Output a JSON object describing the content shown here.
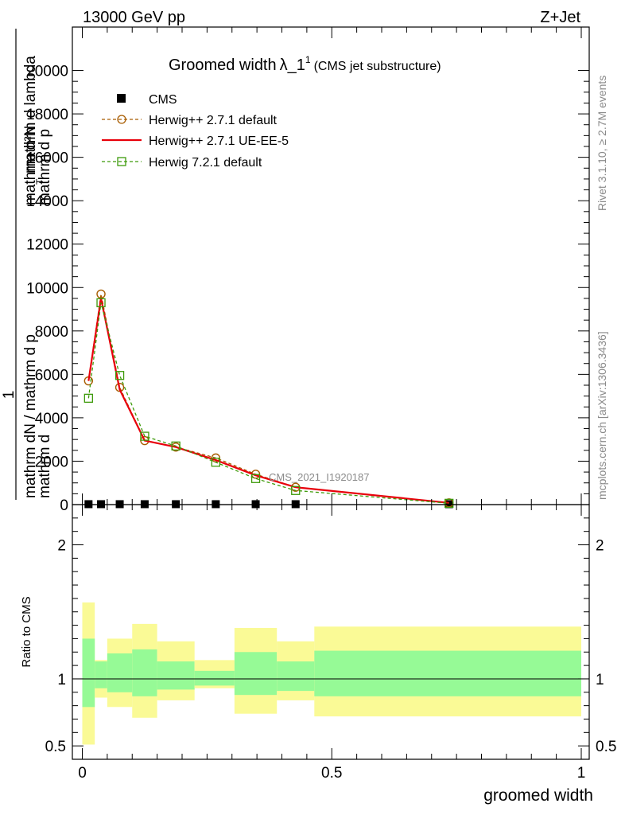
{
  "header": {
    "left": "13000 GeV pp",
    "right": "Z+Jet"
  },
  "side_labels": {
    "top_right": "Rivet 3.1.10, ≥ 2.7M events",
    "bottom_right": "mcplots.cern.ch [arXiv:1306.3436]"
  },
  "chart_data": [
    {
      "type": "line",
      "panel": "main",
      "title": "Groomed width",
      "title_symbol": "λ_1",
      "title_superscript": "1",
      "title_note": "(CMS jet substructure)",
      "analysis_label": "CMS_2021_I1920187",
      "ylabel": {
        "numerator_1": "mathrm d²N",
        "numerator_2": "mathrm d p",
        "subscript": "T",
        "numerator_3": "mathrm d lambda",
        "denominator": "mathrm dN / mathrm d p",
        "denominator_2": "mathrm d",
        "prefix": "1"
      },
      "xlim": [
        0,
        1
      ],
      "ylim": [
        0,
        22000
      ],
      "y_ticks": [
        0,
        2000,
        4000,
        6000,
        8000,
        10000,
        12000,
        14000,
        16000,
        18000,
        20000
      ],
      "y_tick_labels": [
        "0",
        "2000",
        "4000",
        "6000",
        "8000",
        "10000",
        "12000",
        "14000",
        "16000",
        "18000",
        "20000"
      ],
      "legend_position": "top-left",
      "series": [
        {
          "name": "CMS",
          "style": "markers",
          "color": "#000000",
          "x": [
            0.0125,
            0.0375,
            0.075,
            0.125,
            0.1875,
            0.2675,
            0.3475,
            0.4275,
            0.735
          ],
          "y": [
            20,
            20,
            20,
            20,
            20,
            20,
            20,
            20,
            20
          ]
        },
        {
          "name": "Herwig++ 2.7.1 default",
          "style": "dashed-circle",
          "color": "#a85c00",
          "x": [
            0.0125,
            0.0375,
            0.075,
            0.125,
            0.1875,
            0.2675,
            0.3475,
            0.4275,
            0.735
          ],
          "y": [
            5700,
            9700,
            5400,
            2950,
            2650,
            2150,
            1400,
            800,
            80
          ]
        },
        {
          "name": "Herwig++ 2.7.1 UE-EE-5",
          "style": "solid",
          "color": "#e8000b",
          "x": [
            0.0125,
            0.0375,
            0.075,
            0.125,
            0.1875,
            0.2675,
            0.3475,
            0.4275,
            0.735
          ],
          "y": [
            5700,
            9500,
            5300,
            2950,
            2650,
            2050,
            1350,
            800,
            80
          ]
        },
        {
          "name": "Herwig 7.2.1 default",
          "style": "dashed-square",
          "color": "#3d9a0a",
          "x": [
            0.0125,
            0.0375,
            0.075,
            0.125,
            0.1875,
            0.2675,
            0.3475,
            0.4275,
            0.735
          ],
          "y": [
            4900,
            9300,
            5950,
            3150,
            2700,
            1950,
            1200,
            650,
            60
          ]
        }
      ]
    },
    {
      "type": "area",
      "panel": "ratio",
      "ylabel": "Ratio to CMS",
      "xlabel": "groomed width",
      "xlim": [
        0,
        1
      ],
      "ylim": [
        0.4,
        2.3
      ],
      "y_ticks": [
        0.5,
        1,
        2
      ],
      "y_tick_labels": [
        "0.5",
        "1",
        "2"
      ],
      "x_ticks": [
        0,
        0.5,
        1
      ],
      "x_tick_labels": [
        "0",
        "0.5",
        "1"
      ],
      "reference_line": 1,
      "bands": {
        "bin_edges": [
          0,
          0.025,
          0.05,
          0.1,
          0.15,
          0.225,
          0.305,
          0.39,
          0.465,
          1.0
        ],
        "inner_color": "#96fa96",
        "outer_color": "#fafa96",
        "inner_low": [
          0.79,
          0.93,
          0.9,
          0.87,
          0.92,
          0.95,
          0.88,
          0.91,
          0.87
        ],
        "inner_high": [
          1.3,
          1.13,
          1.19,
          1.22,
          1.13,
          1.06,
          1.2,
          1.13,
          1.21
        ],
        "outer_low": [
          0.51,
          0.86,
          0.79,
          0.71,
          0.84,
          0.93,
          0.74,
          0.84,
          0.72
        ],
        "outer_high": [
          1.57,
          1.14,
          1.3,
          1.41,
          1.28,
          1.14,
          1.38,
          1.28,
          1.39
        ]
      }
    }
  ]
}
